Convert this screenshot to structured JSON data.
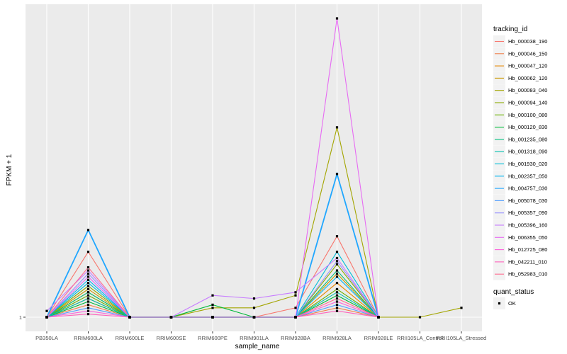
{
  "chart_data": {
    "type": "line",
    "title": "",
    "xlabel": "sample_name",
    "ylabel": "FPKM + 1",
    "categories": [
      "PB350LA",
      "RRIM600LA",
      "RRIM600LE",
      "RRIM600SE",
      "RRIM600PE",
      "RRIM901LA",
      "RRIM928BA",
      "RRIM928LA",
      "RRIM928LE",
      "RRII105LA_Control",
      "RRII105LA_Stressed"
    ],
    "y_ticks": [
      {
        "value": 1,
        "label": "1"
      }
    ],
    "ylim": [
      0,
      100
    ],
    "grid": true,
    "series": [
      {
        "name": "Hb_000038_190",
        "color": "#F8766D",
        "values": [
          1,
          22,
          1,
          1,
          1,
          1,
          4,
          27,
          1,
          null,
          null
        ]
      },
      {
        "name": "Hb_000046_150",
        "color": "#F07F4A",
        "values": [
          1,
          5,
          1,
          1,
          1,
          1,
          1,
          4,
          1,
          null,
          null
        ]
      },
      {
        "name": "Hb_000047_120",
        "color": "#E58700",
        "values": [
          1,
          7,
          1,
          1,
          1,
          1,
          1,
          12,
          1,
          null,
          null
        ]
      },
      {
        "name": "Hb_000062_120",
        "color": "#C99800",
        "values": [
          1,
          10,
          1,
          1,
          1,
          1,
          1,
          15,
          1,
          null,
          null
        ]
      },
      {
        "name": "Hb_000083_040",
        "color": "#A3A500",
        "values": [
          1,
          9,
          1,
          1,
          4,
          4,
          8,
          62,
          1,
          1,
          4
        ]
      },
      {
        "name": "Hb_000094_140",
        "color": "#8CAB00",
        "values": [
          1,
          11,
          1,
          1,
          1,
          1,
          1,
          18,
          1,
          null,
          null
        ]
      },
      {
        "name": "Hb_000100_080",
        "color": "#6BB100",
        "values": [
          1,
          8,
          1,
          1,
          1,
          1,
          1,
          10,
          1,
          null,
          null
        ]
      },
      {
        "name": "Hb_000120_830",
        "color": "#00BA38",
        "values": [
          1,
          6,
          1,
          1,
          5,
          1,
          1,
          8,
          1,
          null,
          null
        ]
      },
      {
        "name": "Hb_001235_080",
        "color": "#00BF7D",
        "values": [
          1,
          9,
          1,
          1,
          1,
          1,
          1,
          16,
          1,
          null,
          null
        ]
      },
      {
        "name": "Hb_001318_090",
        "color": "#00C0AF",
        "values": [
          1,
          7,
          1,
          1,
          1,
          1,
          1,
          9,
          1,
          null,
          null
        ]
      },
      {
        "name": "Hb_001930_020",
        "color": "#00BCD8",
        "values": [
          1,
          12,
          1,
          1,
          1,
          1,
          1,
          22,
          1,
          null,
          null
        ]
      },
      {
        "name": "Hb_002357_050",
        "color": "#00B4F0",
        "values": [
          1,
          13,
          1,
          1,
          1,
          1,
          1,
          14,
          1,
          null,
          null
        ]
      },
      {
        "name": "Hb_004757_030",
        "color": "#1FA6FF",
        "values": [
          1,
          29,
          1,
          1,
          1,
          1,
          1,
          47,
          1,
          null,
          null
        ]
      },
      {
        "name": "Hb_005078_030",
        "color": "#529EFF",
        "values": [
          1,
          4,
          1,
          1,
          1,
          1,
          1,
          5,
          1,
          null,
          null
        ]
      },
      {
        "name": "Hb_005357_090",
        "color": "#9590FF",
        "values": [
          1,
          15,
          1,
          1,
          1,
          1,
          1,
          19,
          1,
          null,
          null
        ]
      },
      {
        "name": "Hb_005396_160",
        "color": "#C77CFF",
        "values": [
          3,
          16,
          1,
          1,
          8,
          7,
          9,
          20,
          1,
          null,
          null
        ]
      },
      {
        "name": "Hb_006355_050",
        "color": "#E76BF3",
        "values": [
          1,
          14,
          1,
          1,
          1,
          1,
          1,
          97,
          1,
          null,
          null
        ]
      },
      {
        "name": "Hb_012725_080",
        "color": "#FA62DB",
        "values": [
          1,
          3,
          1,
          1,
          1,
          1,
          1,
          6,
          1,
          null,
          null
        ]
      },
      {
        "name": "Hb_042211_010",
        "color": "#FF62BC",
        "values": [
          1,
          2,
          1,
          1,
          1,
          1,
          1,
          3,
          1,
          null,
          null
        ]
      },
      {
        "name": "Hb_052983_010",
        "color": "#FF6C91",
        "values": [
          1,
          17,
          1,
          1,
          1,
          1,
          1,
          7,
          1,
          null,
          null
        ]
      }
    ],
    "legends": [
      {
        "title": "tracking_id"
      },
      {
        "title": "quant_status",
        "entries": [
          "OK"
        ]
      }
    ]
  }
}
